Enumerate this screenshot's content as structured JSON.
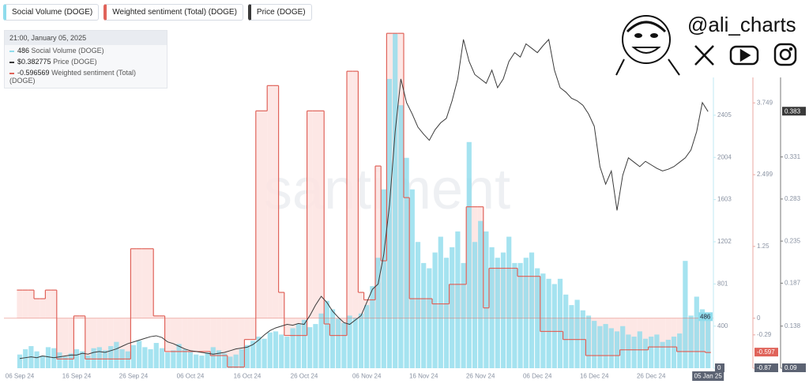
{
  "chart_data": {
    "type": "combo",
    "watermark": "santiment",
    "brand": "@ali_charts",
    "tooltip": {
      "title": "21:00, January 05, 2025",
      "items": [
        {
          "value": 486,
          "name": "Social Volume (DOGE)"
        },
        {
          "value": 0.382775,
          "label": "$0.382775",
          "name": "Price (DOGE)"
        },
        {
          "value": -0.596569,
          "name": "Weighted sentiment (Total) (DOGE)"
        }
      ]
    },
    "categories": [
      "06 Sep 24",
      null,
      null,
      null,
      null,
      null,
      null,
      null,
      null,
      null,
      "16 Sep 24",
      null,
      null,
      null,
      null,
      null,
      null,
      null,
      null,
      null,
      "26 Sep 24",
      null,
      null,
      null,
      null,
      null,
      null,
      null,
      null,
      null,
      "06 Oct 24",
      null,
      null,
      null,
      null,
      null,
      null,
      null,
      null,
      null,
      "16 Oct 24",
      null,
      null,
      null,
      null,
      null,
      null,
      null,
      null,
      null,
      "26 Oct 24",
      null,
      null,
      null,
      null,
      null,
      null,
      null,
      null,
      null,
      null,
      "06 Nov 24",
      null,
      null,
      null,
      null,
      null,
      null,
      null,
      null,
      null,
      "16 Nov 24",
      null,
      null,
      null,
      null,
      null,
      null,
      null,
      null,
      null,
      "26 Nov 24",
      null,
      null,
      null,
      null,
      null,
      null,
      null,
      null,
      null,
      "06 Dec 24",
      null,
      null,
      null,
      null,
      null,
      null,
      null,
      null,
      null,
      "16 Dec 24",
      null,
      null,
      null,
      null,
      null,
      null,
      null,
      null,
      null,
      "26 Dec 24",
      null,
      null,
      null,
      null,
      null,
      null,
      null,
      null,
      null,
      "05 Jan 25"
    ],
    "series": [
      {
        "name": "Social Volume (DOGE)",
        "kind": "bar",
        "axis": "y",
        "color": "#8fdcec",
        "values": [
          130,
          180,
          210,
          160,
          120,
          200,
          190,
          150,
          110,
          140,
          180,
          160,
          120,
          190,
          200,
          170,
          210,
          250,
          180,
          160,
          220,
          260,
          200,
          180,
          240,
          190,
          150,
          170,
          230,
          180,
          160,
          130,
          120,
          150,
          200,
          170,
          140,
          110,
          130,
          180,
          220,
          260,
          300,
          280,
          340,
          350,
          320,
          300,
          380,
          420,
          460,
          390,
          420,
          520,
          640,
          560,
          470,
          430,
          500,
          480,
          520,
          600,
          780,
          1050,
          1700,
          2750,
          3180,
          2500,
          2000,
          1700,
          1200,
          1000,
          950,
          1100,
          1250,
          1050,
          1150,
          1300,
          1000,
          2150,
          1200,
          1400,
          1300,
          1150,
          1050,
          1100,
          1250,
          1000,
          1000,
          1050,
          1100,
          950,
          900,
          850,
          800,
          850,
          700,
          600,
          650,
          550,
          500,
          450,
          400,
          420,
          380,
          350,
          400,
          320,
          300,
          350,
          280,
          300,
          320,
          250,
          270,
          300,
          330,
          1020,
          500,
          680,
          560,
          486
        ]
      },
      {
        "name": "Weighted sentiment (Total) (DOGE)",
        "kind": "step",
        "axis": "y2",
        "color": "#e0635a",
        "last_label": "-0.597",
        "values": [
          0.49,
          0.49,
          0.49,
          0.34,
          0.34,
          0.49,
          0.49,
          -0.71,
          -0.71,
          -0.71,
          0.04,
          0.04,
          -0.71,
          -0.71,
          -0.71,
          -0.71,
          -0.71,
          -0.71,
          -0.71,
          -0.71,
          1.21,
          1.21,
          1.21,
          1.21,
          0.04,
          0.04,
          -0.58,
          -0.58,
          -0.58,
          -0.58,
          -0.58,
          -0.58,
          -0.58,
          -0.58,
          -0.65,
          -0.65,
          -0.65,
          -0.85,
          -0.85,
          -0.85,
          -0.37,
          -0.37,
          3.61,
          3.61,
          4.05,
          4.05,
          0.45,
          -0.3,
          -0.3,
          -0.3,
          -0.3,
          3.61,
          3.61,
          3.61,
          -0.1,
          -0.3,
          -0.3,
          -0.3,
          4.3,
          4.3,
          0.45,
          0.32,
          0.32,
          2.65,
          1.0,
          4.96,
          4.96,
          4.96,
          2.1,
          0.34,
          0.34,
          0.34,
          0.34,
          0.25,
          0.25,
          0.25,
          0.59,
          0.59,
          0.59,
          1.94,
          1.94,
          1.94,
          0.18,
          0.87,
          0.87,
          0.87,
          0.87,
          0.87,
          0.73,
          0.73,
          0.73,
          0.73,
          -0.23,
          -0.23,
          -0.23,
          -0.23,
          -0.37,
          -0.37,
          -0.37,
          -0.37,
          -0.65,
          -0.65,
          -0.65,
          -0.65,
          -0.65,
          -0.65,
          -0.55,
          -0.55,
          -0.55,
          -0.55,
          -0.55,
          -0.5,
          -0.5,
          -0.5,
          -0.5,
          -0.5,
          -0.58,
          -0.58,
          -0.58,
          -0.58,
          -0.58,
          -0.596569
        ]
      },
      {
        "name": "Price (DOGE)",
        "kind": "line",
        "axis": "y3",
        "color": "#3a3a3a",
        "last_label": "0.383",
        "values": [
          0.101,
          0.102,
          0.103,
          0.102,
          0.104,
          0.103,
          0.102,
          0.103,
          0.104,
          0.105,
          0.105,
          0.107,
          0.106,
          0.108,
          0.109,
          0.108,
          0.11,
          0.112,
          0.115,
          0.118,
          0.12,
          0.122,
          0.124,
          0.126,
          0.127,
          0.125,
          0.12,
          0.118,
          0.115,
          0.112,
          0.11,
          0.109,
          0.108,
          0.107,
          0.106,
          0.107,
          0.108,
          0.11,
          0.112,
          0.113,
          0.114,
          0.117,
          0.122,
          0.128,
          0.133,
          0.136,
          0.138,
          0.14,
          0.139,
          0.141,
          0.14,
          0.15,
          0.162,
          0.172,
          0.165,
          0.155,
          0.148,
          0.142,
          0.14,
          0.145,
          0.15,
          0.165,
          0.18,
          0.186,
          0.22,
          0.276,
          0.36,
          0.42,
          0.393,
          0.38,
          0.365,
          0.357,
          0.35,
          0.362,
          0.37,
          0.375,
          0.395,
          0.42,
          0.465,
          0.44,
          0.425,
          0.42,
          0.415,
          0.43,
          0.41,
          0.42,
          0.44,
          0.45,
          0.445,
          0.46,
          0.455,
          0.45,
          0.458,
          0.465,
          0.43,
          0.41,
          0.405,
          0.398,
          0.395,
          0.39,
          0.38,
          0.366,
          0.32,
          0.3,
          0.315,
          0.27,
          0.31,
          0.33,
          0.325,
          0.32,
          0.326,
          0.322,
          0.318,
          0.315,
          0.317,
          0.32,
          0.325,
          0.33,
          0.339,
          0.36,
          0.393,
          0.382775
        ]
      }
    ],
    "ylim": [
      0,
      3200
    ],
    "yticks": [
      0,
      400,
      801,
      1202,
      1603,
      2004,
      2405
    ],
    "y2lim": [
      -0.87,
      4.99
    ],
    "y2ticks": [
      -0.87,
      -0.29,
      0,
      1.25,
      2.499,
      3.749
    ],
    "y3lim": [
      0.09,
      0.474
    ],
    "y3ticks": [
      0.09,
      0.138,
      0.187,
      0.235,
      0.283,
      0.331
    ],
    "grid": false
  }
}
